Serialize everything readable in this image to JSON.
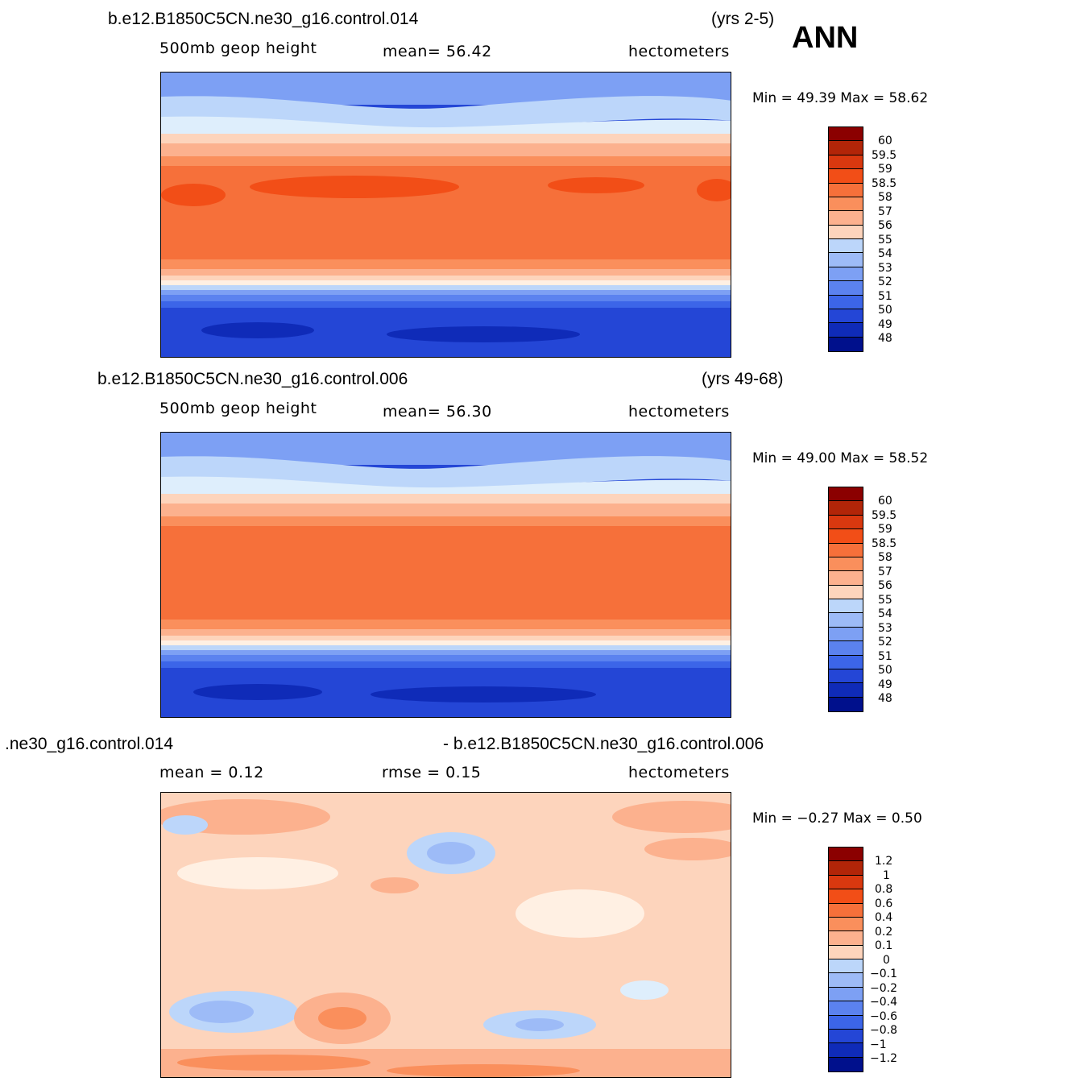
{
  "panels": [
    {
      "case": "b.e12.B1850C5CN.ne30_g16.control.014",
      "years": "(yrs 2-5)",
      "variable": "500mb  geop  height",
      "stat": "mean=   56.42",
      "units": "hectometers",
      "minmax": "Min =   49.39  Max =   58.62",
      "colorbar_labels": [
        "60",
        "59.5",
        "59",
        "58.5",
        "58",
        "57",
        "56",
        "55",
        "54",
        "53",
        "52",
        "51",
        "50",
        "49",
        "48"
      ]
    },
    {
      "case": "b.e12.B1850C5CN.ne30_g16.control.006",
      "years": "(yrs 49-68)",
      "variable": "500mb  geop  height",
      "stat": "mean=   56.30",
      "units": "hectometers",
      "minmax": "Min =   49.00  Max =   58.52",
      "colorbar_labels": [
        "60",
        "59.5",
        "59",
        "58.5",
        "58",
        "57",
        "56",
        "55",
        "54",
        "53",
        "52",
        "51",
        "50",
        "49",
        "48"
      ]
    },
    {
      "case_left": ".ne30_g16.control.014",
      "case_right": "- b.e12.B1850C5CN.ne30_g16.control.006",
      "stat_mean": "mean =    0.12",
      "stat_rmse": "rmse =    0.15",
      "units": "hectometers",
      "minmax": "Min =   −0.27  Max =    0.50",
      "colorbar_labels": [
        "1.2",
        "1",
        "0.8",
        "0.6",
        "0.4",
        "0.2",
        "0.1",
        "0",
        "−0.1",
        "−0.2",
        "−0.4",
        "−0.6",
        "−0.8",
        "−1",
        "−1.2"
      ]
    }
  ],
  "season": "ANN",
  "palette": [
    "#8b0000",
    "#b22508",
    "#d9380f",
    "#f24e17",
    "#f6703a",
    "#fa8f5c",
    "#fcb18e",
    "#fdd4bc",
    "#fff0e3",
    "#deeefc",
    "#bcd6fa",
    "#9dbbf7",
    "#7da0f4",
    "#5b82ef",
    "#3c65e8",
    "#2446d6",
    "#0f2bb8",
    "#00108c"
  ]
}
